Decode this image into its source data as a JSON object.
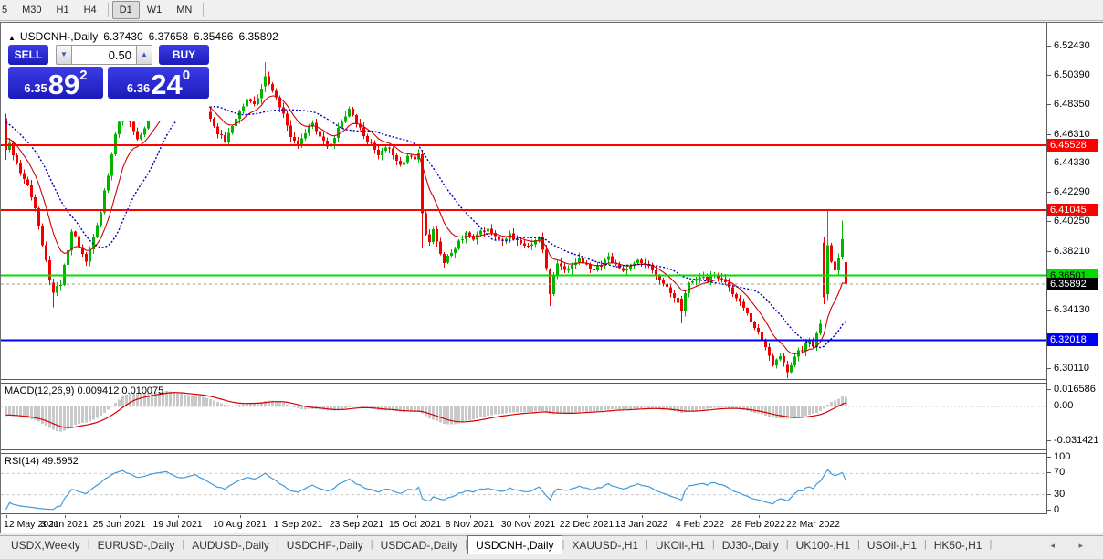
{
  "toolbar": {
    "timeframes": [
      {
        "label": "5",
        "active": false
      },
      {
        "label": "M30",
        "active": false
      },
      {
        "label": "H1",
        "active": false
      },
      {
        "label": "H4",
        "active": false
      },
      {
        "label": "D1",
        "active": true
      },
      {
        "label": "W1",
        "active": false
      },
      {
        "label": "MN",
        "active": false
      }
    ]
  },
  "header": {
    "collapse_icon": "▲",
    "symbol": "USDCNH-,Daily",
    "open": "6.37430",
    "high": "6.37658",
    "low": "6.35486",
    "close": "6.35892"
  },
  "trade_panel": {
    "sell_label": "SELL",
    "buy_label": "BUY",
    "volume": "0.50",
    "spinner_down": "▼",
    "spinner_up": "▲",
    "sell_price": {
      "prefix": "6.35",
      "big": "89",
      "sup": "2"
    },
    "buy_price": {
      "prefix": "6.36",
      "big": "24",
      "sup": "0"
    },
    "button_color": "#2121d0"
  },
  "chart_data": {
    "type": "candlestick",
    "symbol": "USDCNH-",
    "timeframe": "Daily",
    "title": "USDCNH-,Daily 6.37430 6.37658 6.35486 6.35892",
    "colors": {
      "bull": "#00b400",
      "bear": "#f20000",
      "ma_fast": "#d40000",
      "ma_slow": "#0000bb",
      "bid_line": "#9a9a9a"
    },
    "y_axis": {
      "ticks": [
        "6.52430",
        "6.50390",
        "6.48350",
        "6.46310",
        "6.44330",
        "6.42290",
        "6.40250",
        "6.38210",
        "6.34130",
        "6.30110"
      ],
      "visible_range": [
        6.293,
        6.536
      ]
    },
    "x_axis": {
      "ticks": [
        [
          "12 May 2021",
          0
        ],
        [
          "3 Jun 2021",
          16
        ],
        [
          "25 Jun 2021",
          31
        ],
        [
          "19 Jul 2021",
          47
        ],
        [
          "10 Aug 2021",
          64
        ],
        [
          "1 Sep 2021",
          80
        ],
        [
          "23 Sep 2021",
          96
        ],
        [
          "15 Oct 2021",
          112
        ],
        [
          "8 Nov 2021",
          127
        ],
        [
          "30 Nov 2021",
          143
        ],
        [
          "22 Dec 2021",
          159
        ],
        [
          "13 Jan 2022",
          174
        ],
        [
          "4 Feb 2022",
          190
        ],
        [
          "28 Feb 2022",
          206
        ],
        [
          "22 Mar 2022",
          221
        ]
      ]
    },
    "levels": [
      {
        "label": "6.45528",
        "price": 6.45528,
        "color": "#ff0000",
        "text_color": "#ffffff",
        "kind": "resistance"
      },
      {
        "label": "6.41045",
        "price": 6.41045,
        "color": "#ff0000",
        "text_color": "#ffffff",
        "kind": "resistance"
      },
      {
        "label": "6.36501",
        "price": 6.36501,
        "color": "#00dd00",
        "text_color": "#000000",
        "kind": "support"
      },
      {
        "label": "6.32018",
        "price": 6.32018,
        "color": "#0000ff",
        "text_color": "#ffffff",
        "kind": "support"
      }
    ],
    "current_price": {
      "label": "6.35892",
      "price": 6.35892,
      "bg": "#000000",
      "text_color": "#ffffff"
    },
    "candles": {
      "count": 231,
      "close_anchors": [
        [
          0,
          6.463
        ],
        [
          2,
          6.448
        ],
        [
          4,
          6.437
        ],
        [
          6,
          6.429
        ],
        [
          8,
          6.411
        ],
        [
          10,
          6.386
        ],
        [
          12,
          6.362
        ],
        [
          13,
          6.353
        ],
        [
          15,
          6.36
        ],
        [
          17,
          6.383
        ],
        [
          18,
          6.396
        ],
        [
          20,
          6.386
        ],
        [
          22,
          6.376
        ],
        [
          24,
          6.39
        ],
        [
          26,
          6.41
        ],
        [
          28,
          6.435
        ],
        [
          30,
          6.463
        ],
        [
          32,
          6.48
        ],
        [
          34,
          6.47
        ],
        [
          36,
          6.458
        ],
        [
          38,
          6.468
        ],
        [
          40,
          6.478
        ],
        [
          42,
          6.487
        ],
        [
          44,
          6.493
        ],
        [
          46,
          6.485
        ],
        [
          48,
          6.478
        ],
        [
          50,
          6.484
        ],
        [
          52,
          6.49
        ],
        [
          54,
          6.483
        ],
        [
          56,
          6.474
        ],
        [
          58,
          6.464
        ],
        [
          60,
          6.459
        ],
        [
          62,
          6.47
        ],
        [
          64,
          6.479
        ],
        [
          66,
          6.487
        ],
        [
          68,
          6.483
        ],
        [
          70,
          6.495
        ],
        [
          71,
          6.503
        ],
        [
          72,
          6.498
        ],
        [
          74,
          6.488
        ],
        [
          76,
          6.476
        ],
        [
          78,
          6.462
        ],
        [
          80,
          6.455
        ],
        [
          82,
          6.463
        ],
        [
          84,
          6.471
        ],
        [
          86,
          6.462
        ],
        [
          88,
          6.454
        ],
        [
          90,
          6.461
        ],
        [
          92,
          6.471
        ],
        [
          94,
          6.48
        ],
        [
          96,
          6.471
        ],
        [
          98,
          6.462
        ],
        [
          100,
          6.456
        ],
        [
          102,
          6.449
        ],
        [
          104,
          6.455
        ],
        [
          106,
          6.448
        ],
        [
          108,
          6.441
        ],
        [
          110,
          6.449
        ],
        [
          112,
          6.446
        ],
        [
          113,
          6.449
        ],
        [
          114,
          6.408
        ],
        [
          115,
          6.393
        ],
        [
          116,
          6.387
        ],
        [
          117,
          6.397
        ],
        [
          118,
          6.389
        ],
        [
          119,
          6.381
        ],
        [
          120,
          6.375
        ],
        [
          122,
          6.381
        ],
        [
          124,
          6.388
        ],
        [
          126,
          6.394
        ],
        [
          128,
          6.391
        ],
        [
          130,
          6.395
        ],
        [
          132,
          6.398
        ],
        [
          134,
          6.392
        ],
        [
          136,
          6.389
        ],
        [
          138,
          6.393
        ],
        [
          140,
          6.388
        ],
        [
          142,
          6.385
        ],
        [
          144,
          6.387
        ],
        [
          146,
          6.39
        ],
        [
          147,
          6.384
        ],
        [
          148,
          6.37
        ],
        [
          149,
          6.352
        ],
        [
          150,
          6.366
        ],
        [
          151,
          6.372
        ],
        [
          153,
          6.368
        ],
        [
          155,
          6.372
        ],
        [
          157,
          6.376
        ],
        [
          159,
          6.372
        ],
        [
          161,
          6.368
        ],
        [
          163,
          6.373
        ],
        [
          165,
          6.377
        ],
        [
          167,
          6.372
        ],
        [
          169,
          6.367
        ],
        [
          171,
          6.372
        ],
        [
          173,
          6.377
        ],
        [
          175,
          6.373
        ],
        [
          177,
          6.368
        ],
        [
          179,
          6.362
        ],
        [
          181,
          6.356
        ],
        [
          183,
          6.35
        ],
        [
          185,
          6.34
        ],
        [
          186,
          6.354
        ],
        [
          187,
          6.359
        ],
        [
          188,
          6.362
        ],
        [
          190,
          6.365
        ],
        [
          192,
          6.362
        ],
        [
          194,
          6.366
        ],
        [
          196,
          6.362
        ],
        [
          198,
          6.357
        ],
        [
          200,
          6.35
        ],
        [
          202,
          6.342
        ],
        [
          204,
          6.334
        ],
        [
          206,
          6.326
        ],
        [
          208,
          6.316
        ],
        [
          210,
          6.304
        ],
        [
          212,
          6.31
        ],
        [
          214,
          6.298
        ],
        [
          216,
          6.31
        ],
        [
          218,
          6.314
        ],
        [
          220,
          6.32
        ],
        [
          221,
          6.317
        ],
        [
          222,
          6.324
        ],
        [
          223,
          6.331
        ],
        [
          224,
          6.35
        ],
        [
          225,
          6.386
        ],
        [
          226,
          6.375
        ],
        [
          227,
          6.37
        ],
        [
          228,
          6.378
        ],
        [
          229,
          6.39
        ],
        [
          230,
          6.35892
        ]
      ],
      "overrides": {
        "0": [
          6.474,
          6.477,
          6.445,
          6.452
        ],
        "13": [
          6.36,
          6.363,
          6.343,
          6.353
        ],
        "71": [
          6.496,
          6.513,
          6.492,
          6.503
        ],
        "114": [
          6.449,
          6.452,
          6.384,
          6.408
        ],
        "149": [
          6.369,
          6.37,
          6.344,
          6.352
        ],
        "185": [
          6.349,
          6.351,
          6.332,
          6.34
        ],
        "214": [
          6.303,
          6.306,
          6.294,
          6.298
        ],
        "224": [
          6.388,
          6.392,
          6.345,
          6.35
        ],
        "225": [
          6.352,
          6.4104,
          6.348,
          6.386
        ],
        "229": [
          6.378,
          6.403,
          6.376,
          6.39
        ],
        "230": [
          6.3743,
          6.37658,
          6.35486,
          6.35892
        ]
      }
    },
    "overlays": [
      {
        "name": "ma-fast",
        "type": "ema",
        "period": 10,
        "color": "#d40000"
      },
      {
        "name": "ma-slow",
        "type": "sma",
        "period": 20,
        "color": "#0000bb"
      }
    ],
    "indicators": [
      {
        "name": "macd",
        "label": "MACD(12,26,9) 0.009412 0.010075",
        "params": [
          12,
          26,
          9
        ],
        "values": [
          "0.009412",
          "0.010075"
        ],
        "axis": [
          "0.016586",
          "0.00",
          "-0.031421"
        ],
        "colors": {
          "histogram": "#c9c9c9",
          "signal": "#d40000"
        }
      },
      {
        "name": "rsi",
        "label": "RSI(14) 49.5952",
        "period": 14,
        "value": "49.5952",
        "axis": [
          "100",
          "70",
          "30",
          "0"
        ],
        "levels": [
          70,
          30
        ],
        "color": "#3e9bde"
      }
    ]
  },
  "macd_panel": {
    "label": "MACD(12,26,9) 0.009412 0.010075"
  },
  "rsi_panel": {
    "label": "RSI(14) 49.5952"
  },
  "tabs": {
    "items": [
      "USDX,Weekly",
      "EURUSD-,Daily",
      "AUDUSD-,Daily",
      "USDCHF-,Daily",
      "USDCAD-,Daily",
      "USDCNH-,Daily",
      "XAUUSD-,H1",
      "UKOil-,H1",
      "DJ30-,Daily",
      "UK100-,H1",
      "USOil-,H1",
      "HK50-,H1"
    ],
    "active": "USDCNH-,Daily",
    "scroll_left": "◂",
    "scroll_right": "▸"
  }
}
